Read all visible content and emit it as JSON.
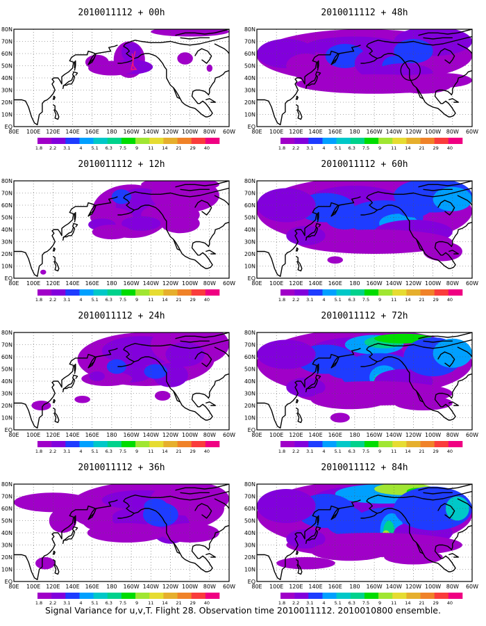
{
  "caption": "Signal Variance for u,v,T. Flight 28. Observation time 2010011112. 2010010800 ensemble.",
  "panels": [
    {
      "title": "2010011112 + 00h",
      "lead_hours": 0
    },
    {
      "title": "2010011112 + 12h",
      "lead_hours": 12
    },
    {
      "title": "2010011112 + 24h",
      "lead_hours": 24
    },
    {
      "title": "2010011112 + 36h",
      "lead_hours": 36
    },
    {
      "title": "2010011112 + 48h",
      "lead_hours": 48
    },
    {
      "title": "2010011112 + 60h",
      "lead_hours": 60
    },
    {
      "title": "2010011112 + 72h",
      "lead_hours": 72
    },
    {
      "title": "2010011112 + 84h",
      "lead_hours": 84
    }
  ],
  "map": {
    "x_ticks": [
      "80E",
      "100E",
      "120E",
      "140E",
      "160E",
      "180",
      "160W",
      "140W",
      "120W",
      "100W",
      "80W",
      "60W"
    ],
    "y_ticks": [
      "EQ",
      "10N",
      "20N",
      "30N",
      "40N",
      "50N",
      "60N",
      "70N",
      "80N"
    ],
    "lon_range": [
      80,
      300
    ],
    "lat_range": [
      0,
      80
    ]
  },
  "colorbar": {
    "labels": [
      "1.8",
      "2.2",
      "3.1",
      "4",
      "5.1",
      "6.3",
      "7.5",
      "9",
      "11",
      "14",
      "21",
      "29",
      "40"
    ],
    "colors": [
      "#a000c8",
      "#8200dc",
      "#1e3cff",
      "#00a0ff",
      "#00c8c8",
      "#00d28c",
      "#00dc00",
      "#a0e632",
      "#e6dc32",
      "#e6af2d",
      "#f08228",
      "#fa3c3c",
      "#f00082"
    ]
  }
}
